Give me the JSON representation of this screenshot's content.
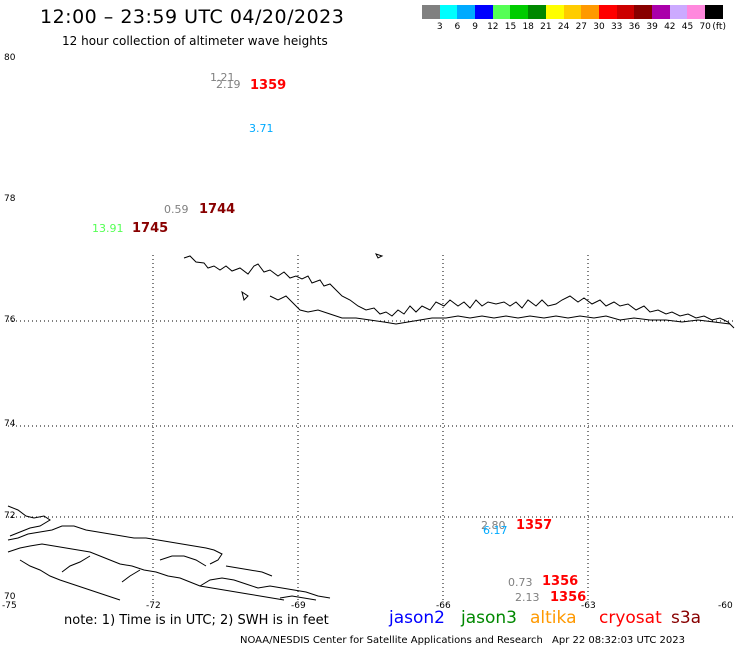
{
  "header": {
    "title": "12:00 – 23:59 UTC 04/20/2023",
    "subtitle": "12 hour collection of altimeter wave heights"
  },
  "legend": {
    "unit": "(ft)",
    "colors": [
      "#808080",
      "#00ffff",
      "#00aaff",
      "#0000ff",
      "#55ff55",
      "#00cc00",
      "#008800",
      "#ffff00",
      "#ffcc00",
      "#ff9900",
      "#ff0000",
      "#cc0000",
      "#880000",
      "#aa00aa",
      "#ccaaff",
      "#ff88dd",
      "#000000"
    ],
    "labels": [
      "3",
      "6",
      "9",
      "12",
      "15",
      "18",
      "21",
      "24",
      "27",
      "30",
      "33",
      "36",
      "39",
      "42",
      "45",
      "70"
    ]
  },
  "axes": {
    "lat_labels": [
      "80",
      "78",
      "76",
      "74",
      "72",
      "70"
    ],
    "lon_labels": [
      "-75",
      "-72",
      "-69",
      "-66",
      "-63",
      "-60"
    ]
  },
  "observations": [
    {
      "swh": "1.21",
      "swh_color": "#808080",
      "time": "",
      "time_color": ""
    },
    {
      "swh": "2.19",
      "swh_color": "#808080",
      "time": "1359",
      "time_color": "#ff0000"
    },
    {
      "swh": "3.71",
      "swh_color": "#00aaff",
      "time": "",
      "time_color": ""
    },
    {
      "swh": "0.59",
      "swh_color": "#808080",
      "time": "1744",
      "time_color": "#880000"
    },
    {
      "swh": "13.91",
      "swh_color": "#55ff55",
      "time": "1745",
      "time_color": "#880000"
    },
    {
      "swh": "2.80",
      "swh_color": "#808080",
      "time": "1357",
      "time_color": "#ff0000"
    },
    {
      "swh": "6.17",
      "swh_color": "#00aaff",
      "time": "",
      "time_color": ""
    },
    {
      "swh": "0.73",
      "swh_color": "#808080",
      "time": "1356",
      "time_color": "#ff0000"
    },
    {
      "swh": "2.13",
      "swh_color": "#808080",
      "time": "1356",
      "time_color": "#ff0000"
    }
  ],
  "footer": {
    "note": "note:  1) Time is in UTC;  2) SWH is in feet",
    "satellites": [
      {
        "name": "jason2",
        "color": "#0000ff"
      },
      {
        "name": "jason3",
        "color": "#008800"
      },
      {
        "name": "altika",
        "color": "#ff9900"
      },
      {
        "name": "cryosat",
        "color": "#ff0000"
      },
      {
        "name": "s3a",
        "color": "#880000"
      }
    ],
    "credit": "NOAA/NESDIS Center for Satellite Applications and Research",
    "timestamp": "Apr 22 08:32:03 UTC 2023"
  }
}
